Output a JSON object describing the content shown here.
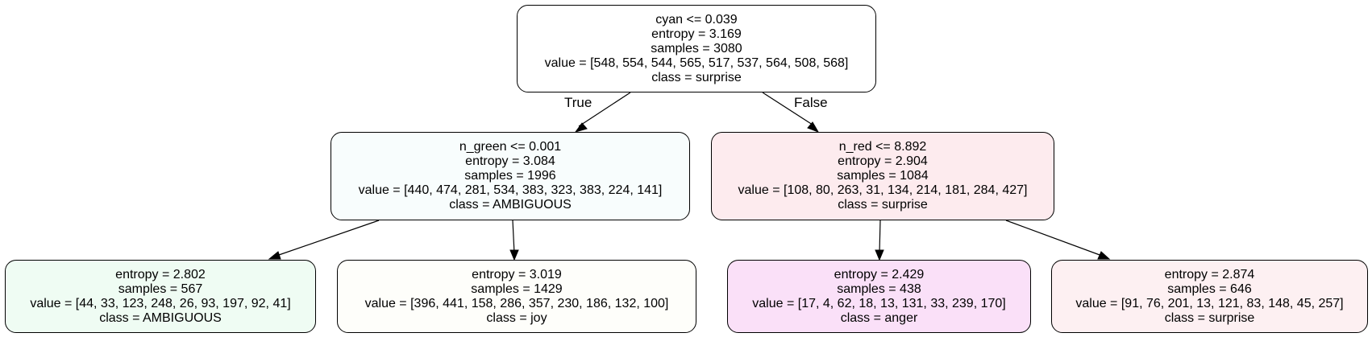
{
  "tree": {
    "nodes": [
      {
        "id": "n0",
        "split": "cyan <= 0.039",
        "entropy": "entropy = 3.169",
        "samples": "samples = 3080",
        "value": "value = [548, 554, 544, 565, 517, 537, 564, 508, 568]",
        "class": "class = surprise",
        "fill": "#ffffff"
      },
      {
        "id": "n1",
        "split": "n_green <= 0.001",
        "entropy": "entropy = 3.084",
        "samples": "samples = 1996",
        "value": "value = [440, 474, 281, 534, 383, 323, 383, 224, 141]",
        "class": "class = AMBIGUOUS",
        "fill": "#f8fdfd"
      },
      {
        "id": "n2",
        "split": "n_red <= 8.892",
        "entropy": "entropy = 2.904",
        "samples": "samples = 1084",
        "value": "value = [108, 80, 263, 31, 134, 214, 181, 284, 427]",
        "class": "class = surprise",
        "fill": "#fdebee"
      },
      {
        "id": "n3",
        "split": "",
        "entropy": "entropy = 2.802",
        "samples": "samples = 567",
        "value": "value = [44, 33, 123, 248, 26, 93, 197, 92, 41]",
        "class": "class = AMBIGUOUS",
        "fill": "#effcf3"
      },
      {
        "id": "n4",
        "split": "",
        "entropy": "entropy = 3.019",
        "samples": "samples = 1429",
        "value": "value = [396, 441, 158, 286, 357, 230, 186, 132, 100]",
        "class": "class = joy",
        "fill": "#fefefa"
      },
      {
        "id": "n5",
        "split": "",
        "entropy": "entropy = 2.429",
        "samples": "samples = 438",
        "value": "value = [17, 4, 62, 18, 13, 131, 33, 239, 170]",
        "class": "class = anger",
        "fill": "#fae0f8"
      },
      {
        "id": "n6",
        "split": "",
        "entropy": "entropy = 2.874",
        "samples": "samples = 646",
        "value": "value = [91, 76, 201, 13, 121, 83, 148, 45, 257]",
        "class": "class = surprise",
        "fill": "#fdf0f2"
      }
    ],
    "edge_labels": {
      "true": "True",
      "false": "False"
    },
    "edges": [
      [
        "n0",
        "n1"
      ],
      [
        "n0",
        "n2"
      ],
      [
        "n1",
        "n3"
      ],
      [
        "n1",
        "n4"
      ],
      [
        "n2",
        "n5"
      ],
      [
        "n2",
        "n6"
      ]
    ]
  }
}
